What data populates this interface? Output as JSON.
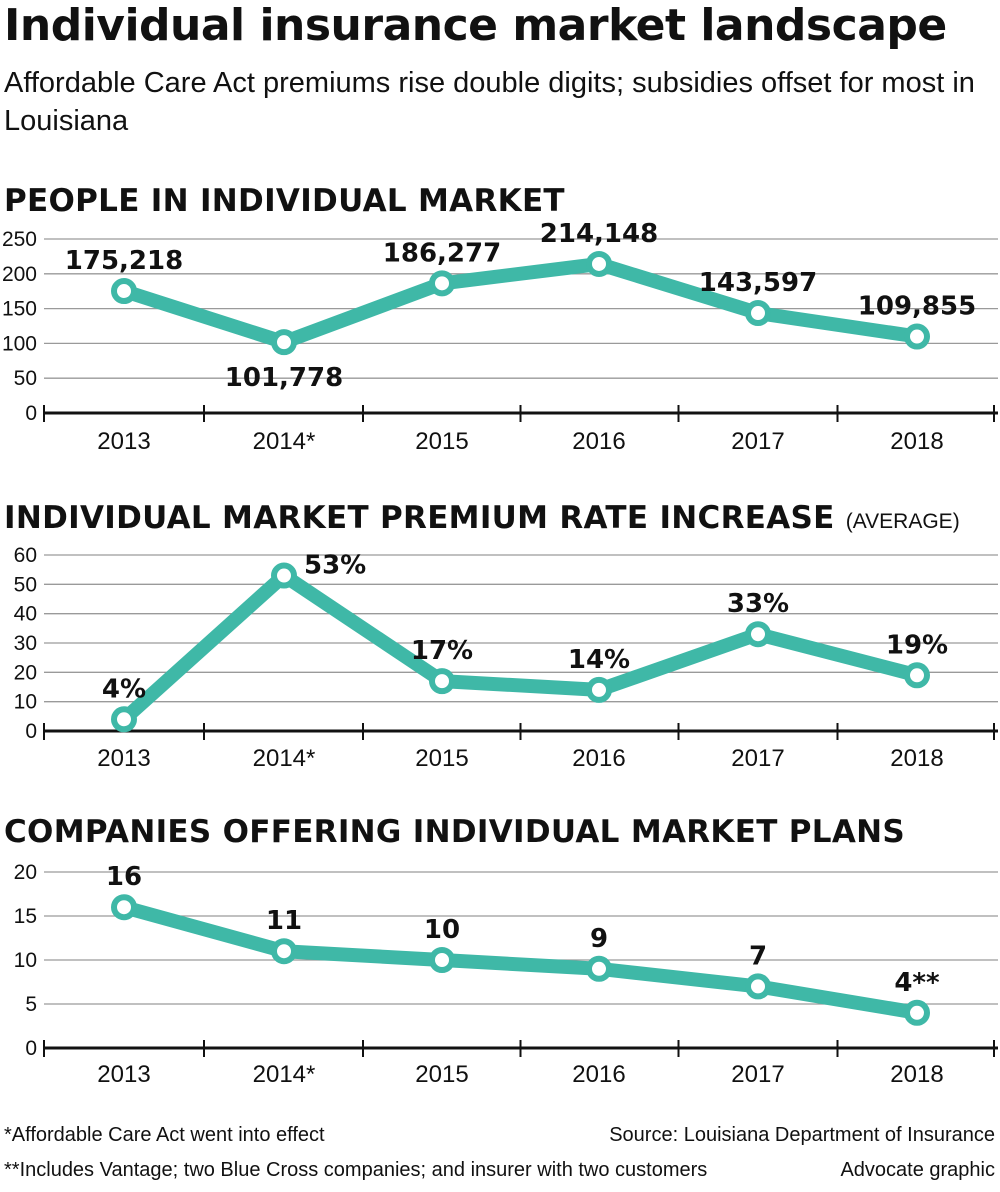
{
  "header": {
    "title": "Individual insurance market landscape",
    "subtitle": "Affordable Care Act premiums rise double digits; subsidies offset for most in Louisiana"
  },
  "sections": [
    {
      "title": "PEOPLE IN INDIVIDUAL MARKET",
      "note": ""
    },
    {
      "title": "INDIVIDUAL MARKET PREMIUM RATE INCREASE",
      "note": "(AVERAGE)"
    },
    {
      "title": "COMPANIES OFFERING INDIVIDUAL MARKET PLANS",
      "note": ""
    }
  ],
  "chart_data": [
    {
      "type": "line",
      "title": "PEOPLE IN INDIVIDUAL MARKET",
      "categories": [
        "2013",
        "2014*",
        "2015",
        "2016",
        "2017",
        "2018"
      ],
      "values": [
        175.218,
        101.778,
        186.277,
        214.148,
        143.597,
        109.855
      ],
      "value_labels": [
        "175,218",
        "101,778",
        "186,277",
        "214,148",
        "143,597",
        "109,855"
      ],
      "label_positions": [
        "above",
        "below",
        "above",
        "above",
        "above",
        "above"
      ],
      "yticks": [
        0,
        50,
        100,
        150,
        200,
        250
      ],
      "ylim": [
        0,
        250
      ],
      "grid": true
    },
    {
      "type": "line",
      "title": "INDIVIDUAL MARKET PREMIUM RATE INCREASE (AVERAGE)",
      "categories": [
        "2013",
        "2014*",
        "2015",
        "2016",
        "2017",
        "2018"
      ],
      "values": [
        4,
        53,
        17,
        14,
        33,
        19
      ],
      "value_labels": [
        "4%",
        "53%",
        "17%",
        "14%",
        "33%",
        "19%"
      ],
      "label_positions": [
        "above",
        "right",
        "above",
        "above",
        "above",
        "above"
      ],
      "yticks": [
        0,
        10,
        20,
        30,
        40,
        50,
        60
      ],
      "ylim": [
        0,
        60
      ],
      "grid": true
    },
    {
      "type": "line",
      "title": "COMPANIES OFFERING INDIVIDUAL MARKET PLANS",
      "categories": [
        "2013",
        "2014*",
        "2015",
        "2016",
        "2017",
        "2018"
      ],
      "values": [
        16,
        11,
        10,
        9,
        7,
        4
      ],
      "value_labels": [
        "16",
        "11",
        "10",
        "9",
        "7",
        "4**"
      ],
      "label_positions": [
        "above",
        "above",
        "above",
        "above",
        "above",
        "above"
      ],
      "yticks": [
        0,
        5,
        10,
        15,
        20
      ],
      "ylim": [
        0,
        20
      ],
      "grid": true
    }
  ],
  "colors": {
    "line": "#3fb8a7",
    "text": "#111111",
    "grid": "#9a9a9a"
  },
  "footer": {
    "note1": "*Affordable Care Act went into effect",
    "note2": "**Includes Vantage; two Blue Cross companies; and insurer with two customers",
    "source": "Source: Louisiana Department of Insurance",
    "credit": "Advocate graphic"
  }
}
